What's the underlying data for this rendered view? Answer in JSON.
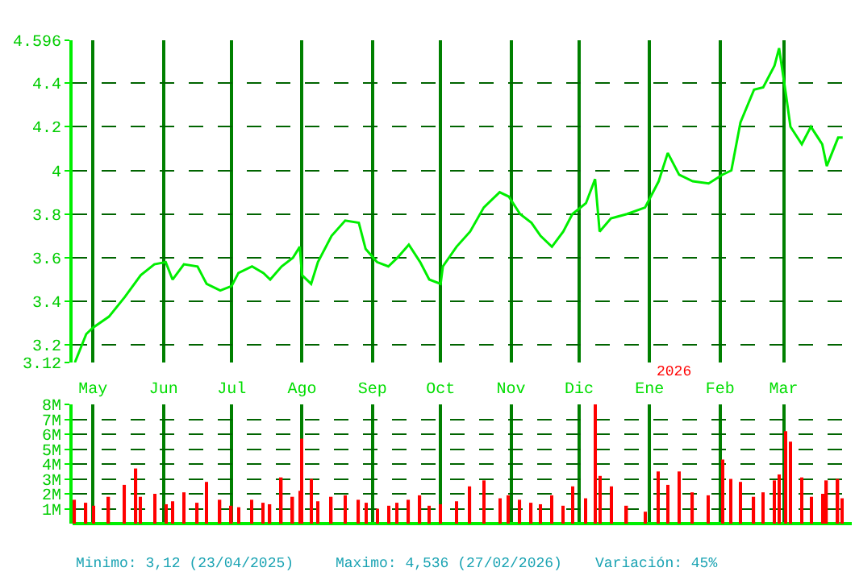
{
  "chart_data": [
    {
      "type": "line",
      "color": "#00ee00",
      "grid": true,
      "marker": "none",
      "line_style": "solid",
      "x": [
        "2025-04-23",
        "2025-04-28",
        "2025-05-01",
        "2025-05-08",
        "2025-05-15",
        "2025-05-22",
        "2025-05-28",
        "2025-06-02",
        "2025-06-05",
        "2025-06-10",
        "2025-06-16",
        "2025-06-20",
        "2025-06-26",
        "2025-07-01",
        "2025-07-04",
        "2025-07-10",
        "2025-07-15",
        "2025-07-18",
        "2025-07-23",
        "2025-07-28",
        "2025-07-31",
        "2025-08-01",
        "2025-08-05",
        "2025-08-08",
        "2025-08-14",
        "2025-08-20",
        "2025-08-26",
        "2025-08-29",
        "2025-09-03",
        "2025-09-08",
        "2025-09-12",
        "2025-09-17",
        "2025-09-22",
        "2025-09-26",
        "2025-10-01",
        "2025-10-02",
        "2025-10-08",
        "2025-10-14",
        "2025-10-20",
        "2025-10-27",
        "2025-10-31",
        "2025-11-05",
        "2025-11-10",
        "2025-11-14",
        "2025-11-19",
        "2025-11-24",
        "2025-11-28",
        "2025-12-04",
        "2025-12-08",
        "2025-12-10",
        "2025-12-15",
        "2025-12-22",
        "2025-12-30",
        "2026-01-05",
        "2026-01-09",
        "2026-01-14",
        "2026-01-20",
        "2026-01-27",
        "2026-02-02",
        "2026-02-06",
        "2026-02-10",
        "2026-02-16",
        "2026-02-20",
        "2026-02-25",
        "2026-02-27",
        "2026-03-02",
        "2026-03-04",
        "2026-03-09",
        "2026-03-13",
        "2026-03-18",
        "2026-03-20",
        "2026-03-25",
        "2026-03-27"
      ],
      "values": [
        3.12,
        3.25,
        3.28,
        3.33,
        3.42,
        3.52,
        3.57,
        3.58,
        3.5,
        3.57,
        3.56,
        3.48,
        3.45,
        3.47,
        3.53,
        3.56,
        3.53,
        3.5,
        3.56,
        3.6,
        3.65,
        3.52,
        3.48,
        3.58,
        3.7,
        3.77,
        3.76,
        3.64,
        3.58,
        3.56,
        3.6,
        3.66,
        3.58,
        3.5,
        3.48,
        3.56,
        3.65,
        3.72,
        3.83,
        3.9,
        3.88,
        3.8,
        3.76,
        3.7,
        3.65,
        3.72,
        3.8,
        3.85,
        3.96,
        3.72,
        3.78,
        3.8,
        3.83,
        3.95,
        4.08,
        3.98,
        3.95,
        3.94,
        3.98,
        4.0,
        4.22,
        4.37,
        4.38,
        4.48,
        4.56,
        4.35,
        4.2,
        4.12,
        4.2,
        4.12,
        4.02,
        4.15,
        4.15
      ],
      "xlim": [
        "2025-04-22",
        "2026-03-31"
      ],
      "xticks": [
        {
          "value": "2025-05-01",
          "label": "May"
        },
        {
          "value": "2025-06-01",
          "label": "Jun"
        },
        {
          "value": "2025-07-01",
          "label": "Jul"
        },
        {
          "value": "2025-08-01",
          "label": "Ago"
        },
        {
          "value": "2025-09-01",
          "label": "Sep"
        },
        {
          "value": "2025-10-01",
          "label": "Oct"
        },
        {
          "value": "2025-11-01",
          "label": "Nov"
        },
        {
          "value": "2025-12-01",
          "label": "Dic"
        },
        {
          "value": "2026-01-01",
          "label": "Ene"
        },
        {
          "value": "2026-02-01",
          "label": "Feb"
        },
        {
          "value": "2026-03-01",
          "label": "Mar"
        }
      ],
      "ylim": [
        3.12,
        4.596
      ],
      "yticks": [
        {
          "value": 3.12,
          "label": "3.12"
        },
        3.2,
        3.4,
        3.6,
        3.8,
        4,
        4.2,
        4.4,
        {
          "value": 4.596,
          "label": "4.596"
        }
      ],
      "annotations": [
        "2026"
      ]
    },
    {
      "type": "bar",
      "color": "#ff0000",
      "grid": true,
      "tick_labels": "y",
      "x": [
        "2025-04-23",
        "2025-04-28",
        "2025-05-01",
        "2025-05-08",
        "2025-05-15",
        "2025-05-20",
        "2025-05-22",
        "2025-05-28",
        "2025-06-02",
        "2025-06-05",
        "2025-06-10",
        "2025-06-16",
        "2025-06-20",
        "2025-06-26",
        "2025-07-01",
        "2025-07-04",
        "2025-07-10",
        "2025-07-15",
        "2025-07-18",
        "2025-07-23",
        "2025-07-28",
        "2025-07-31",
        "2025-08-01",
        "2025-08-05",
        "2025-08-08",
        "2025-08-14",
        "2025-08-20",
        "2025-08-26",
        "2025-08-29",
        "2025-09-03",
        "2025-09-08",
        "2025-09-12",
        "2025-09-17",
        "2025-09-22",
        "2025-09-26",
        "2025-10-01",
        "2025-10-08",
        "2025-10-14",
        "2025-10-20",
        "2025-10-27",
        "2025-10-31",
        "2025-11-05",
        "2025-11-10",
        "2025-11-14",
        "2025-11-19",
        "2025-11-24",
        "2025-11-28",
        "2025-12-04",
        "2025-12-08",
        "2025-12-10",
        "2025-12-15",
        "2025-12-22",
        "2025-12-30",
        "2026-01-05",
        "2026-01-09",
        "2026-01-14",
        "2026-01-20",
        "2026-01-27",
        "2026-02-02",
        "2026-02-06",
        "2026-02-10",
        "2026-02-16",
        "2026-02-20",
        "2026-02-25",
        "2026-02-27",
        "2026-03-02",
        "2026-03-04",
        "2026-03-09",
        "2026-03-13",
        "2026-03-18",
        "2026-03-20",
        "2026-03-25",
        "2026-03-27"
      ],
      "values": [
        1.6,
        1.4,
        1.2,
        1.8,
        2.6,
        3.7,
        1.8,
        2.0,
        1.3,
        1.5,
        2.1,
        1.4,
        2.8,
        1.6,
        1.2,
        1.1,
        1.6,
        1.4,
        1.3,
        3.1,
        1.8,
        2.2,
        5.7,
        3.0,
        1.5,
        1.8,
        1.9,
        1.6,
        1.4,
        1.0,
        1.2,
        1.4,
        1.6,
        1.9,
        1.2,
        1.3,
        1.5,
        2.5,
        2.9,
        1.7,
        1.9,
        1.6,
        1.4,
        1.3,
        1.9,
        1.2,
        2.5,
        1.7,
        8.0,
        3.2,
        2.5,
        1.2,
        0.8,
        3.5,
        2.6,
        3.5,
        2.1,
        1.9,
        4.3,
        3.0,
        2.8,
        1.8,
        2.1,
        2.9,
        3.3,
        6.2,
        5.5,
        3.1,
        1.8,
        2.0,
        2.9,
        3.0,
        1.7
      ],
      "xlim": [
        "2025-04-22",
        "2026-03-31"
      ],
      "xticks": [
        {
          "value": "2025-05-01",
          "label": null
        },
        {
          "value": "2025-06-01",
          "label": null
        },
        {
          "value": "2025-07-01",
          "label": null
        },
        {
          "value": "2025-08-01",
          "label": null
        },
        {
          "value": "2025-09-01",
          "label": null
        },
        {
          "value": "2025-10-01",
          "label": null
        },
        {
          "value": "2025-11-01",
          "label": null
        },
        {
          "value": "2025-12-01",
          "label": null
        },
        {
          "value": "2026-01-01",
          "label": null
        },
        {
          "value": "2026-02-01",
          "label": null
        },
        {
          "value": "2026-03-01",
          "label": null
        }
      ],
      "ylim": [
        0,
        8
      ],
      "yticks": [
        {
          "value": 1,
          "label": "1M"
        },
        {
          "value": 2,
          "label": "2M"
        },
        {
          "value": 3,
          "label": "3M"
        },
        {
          "value": 4,
          "label": "4M"
        },
        {
          "value": 5,
          "label": "5M"
        },
        {
          "value": 6,
          "label": "6M"
        },
        {
          "value": 7,
          "label": "7M"
        },
        {
          "value": 8,
          "label": "8M"
        }
      ],
      "annotations": [
        "Minimo: 3,12 (23/04/2025)",
        "Maximo: 4,536 (27/02/2026)",
        "Variación: 45%"
      ]
    }
  ]
}
